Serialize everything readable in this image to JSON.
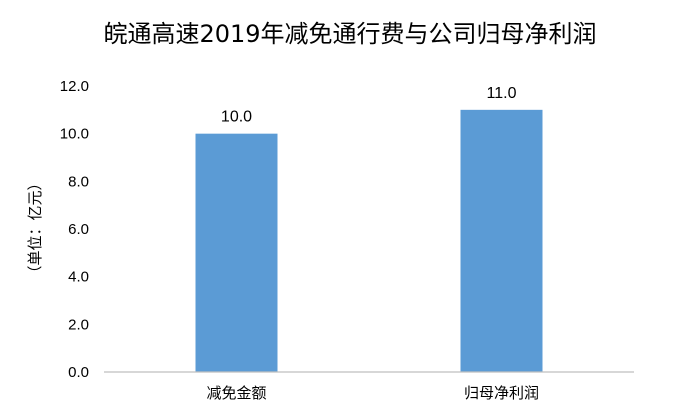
{
  "chart_data": {
    "type": "bar",
    "title": "皖通高速2019年减免通行费与公司归母净利润",
    "ylabel": "（单位：亿元）",
    "xlabel": "",
    "categories": [
      "减免金额",
      "归母净利润"
    ],
    "values": [
      10.0,
      11.0
    ],
    "data_labels": [
      "10.0",
      "11.0"
    ],
    "y_ticks": [
      "0.0",
      "2.0",
      "4.0",
      "6.0",
      "8.0",
      "10.0",
      "12.0"
    ],
    "ylim": [
      0,
      12
    ],
    "grid": false,
    "legend": "none",
    "colors": {
      "bar": "#5B9BD5",
      "axis": "#BFBFBF"
    }
  }
}
